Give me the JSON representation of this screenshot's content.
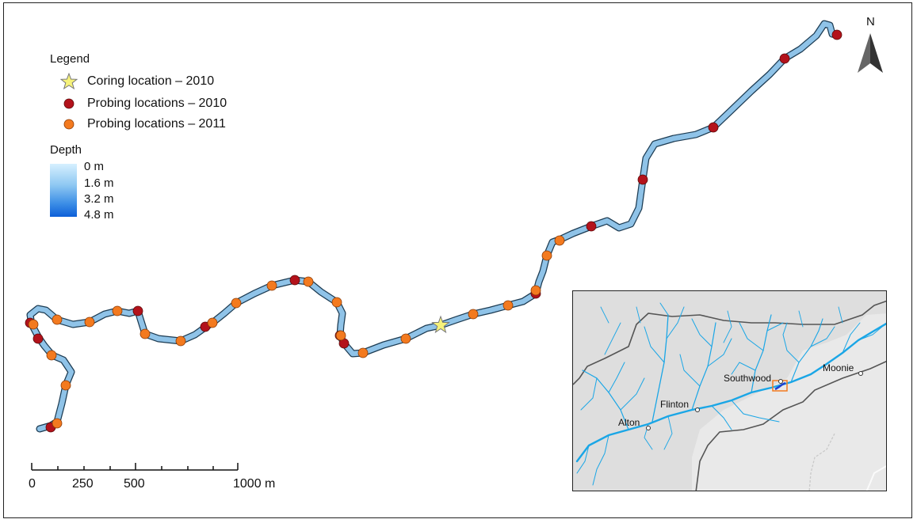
{
  "legend": {
    "title": "Legend",
    "items": [
      {
        "label": "Coring location – 2010",
        "symbol": "star",
        "color": "#f6f27a"
      },
      {
        "label": "Probing locations – 2010",
        "symbol": "circle",
        "color": "#b3121b"
      },
      {
        "label": "Probing locations – 2011",
        "symbol": "circle",
        "color": "#f37a1f"
      }
    ]
  },
  "depth": {
    "title": "Depth",
    "labels": [
      "0 m",
      "1.6 m",
      "3.2 m",
      "4.8 m"
    ],
    "colors": [
      "#d6f0ff",
      "#0d5fd8"
    ]
  },
  "north_arrow": {
    "label": "N"
  },
  "scale_bar": {
    "labels": [
      "0",
      "250",
      "500",
      "1000 m"
    ]
  },
  "inset": {
    "towns": [
      "Southwood",
      "Moonie",
      "Flinton",
      "Alton"
    ],
    "colors": {
      "land": "#e9e9e9",
      "river": "#1aa6e6",
      "boundary": "#555555",
      "extent_box": "#f37a1f"
    }
  },
  "colors": {
    "river_fill": "#8fc3e8",
    "river_outline": "#1c3b52"
  }
}
